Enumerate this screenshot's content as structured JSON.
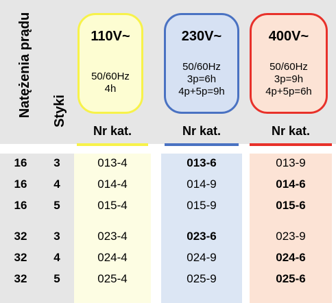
{
  "headers": {
    "current": "Natężenia prądu",
    "contacts": "Styki",
    "nr_kat": "Nr kat."
  },
  "voltages": [
    {
      "title": "110V~",
      "lines": [
        "50/60Hz",
        "4h"
      ],
      "color": "#f7f24a"
    },
    {
      "title": "230V~",
      "lines": [
        "50/60Hz",
        "3p=6h",
        "4p+5p=9h"
      ],
      "color": "#4a72c2"
    },
    {
      "title": "400V~",
      "lines": [
        "50/60Hz",
        "3p=9h",
        "4p+5p=6h"
      ],
      "color": "#e8312a"
    }
  ],
  "rows": [
    {
      "amps": "16",
      "poles": "3",
      "v110": "013-4",
      "v230": "013-6",
      "v400": "013-9",
      "bold": "v230"
    },
    {
      "amps": "16",
      "poles": "4",
      "v110": "014-4",
      "v230": "014-9",
      "v400": "014-6",
      "bold": "v400"
    },
    {
      "amps": "16",
      "poles": "5",
      "v110": "015-4",
      "v230": "015-9",
      "v400": "015-6",
      "bold": "v400"
    },
    {
      "amps": "32",
      "poles": "3",
      "v110": "023-4",
      "v230": "023-6",
      "v400": "023-9",
      "bold": "v230"
    },
    {
      "amps": "32",
      "poles": "4",
      "v110": "024-4",
      "v230": "024-9",
      "v400": "024-6",
      "bold": "v400"
    },
    {
      "amps": "32",
      "poles": "5",
      "v110": "025-4",
      "v230": "025-9",
      "v400": "025-6",
      "bold": "v400"
    }
  ]
}
